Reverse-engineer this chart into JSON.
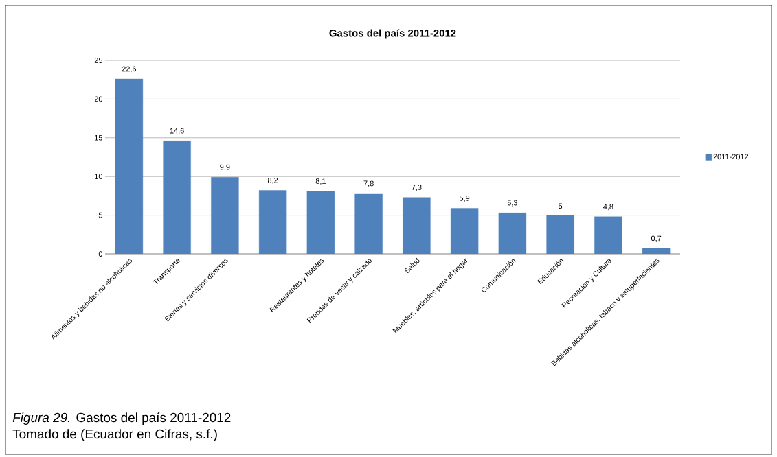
{
  "chart_data": {
    "type": "bar",
    "title": "Gastos del país 2011-2012",
    "categories": [
      "Alimentos y bebidas no alcoholicas",
      "Transporte",
      "Bienes y servicios diversos",
      null,
      "Restaurantes y hoteles",
      "Prendas de vestir y calzado",
      "Salud",
      "Muebles, artículos para el hogar",
      "Comunicación",
      "Educación",
      "Recreación y Cultura",
      "Bebidas alcoholicas, tabaco y estuperfacientes"
    ],
    "series": [
      {
        "name": "2011-2012",
        "color": "#4f81bd",
        "values": [
          22.6,
          14.6,
          9.9,
          8.2,
          8.1,
          7.8,
          7.3,
          5.9,
          5.3,
          5,
          4.8,
          0.7
        ],
        "value_labels": [
          "22,6",
          "14,6",
          "9,9",
          "8,2",
          "8,1",
          "7,8",
          "7,3",
          "5,9",
          "5,3",
          "5",
          "4,8",
          "0,7"
        ]
      }
    ],
    "ylim": [
      0,
      25
    ],
    "yticks": [
      0,
      5,
      10,
      15,
      20,
      25
    ],
    "grid": "y",
    "legend": "right",
    "annotations": [
      "*Figura 29.*  Gastos del país 2011-2012",
      "Tomado de (Ecuador en Cifras, s.f.)"
    ]
  }
}
